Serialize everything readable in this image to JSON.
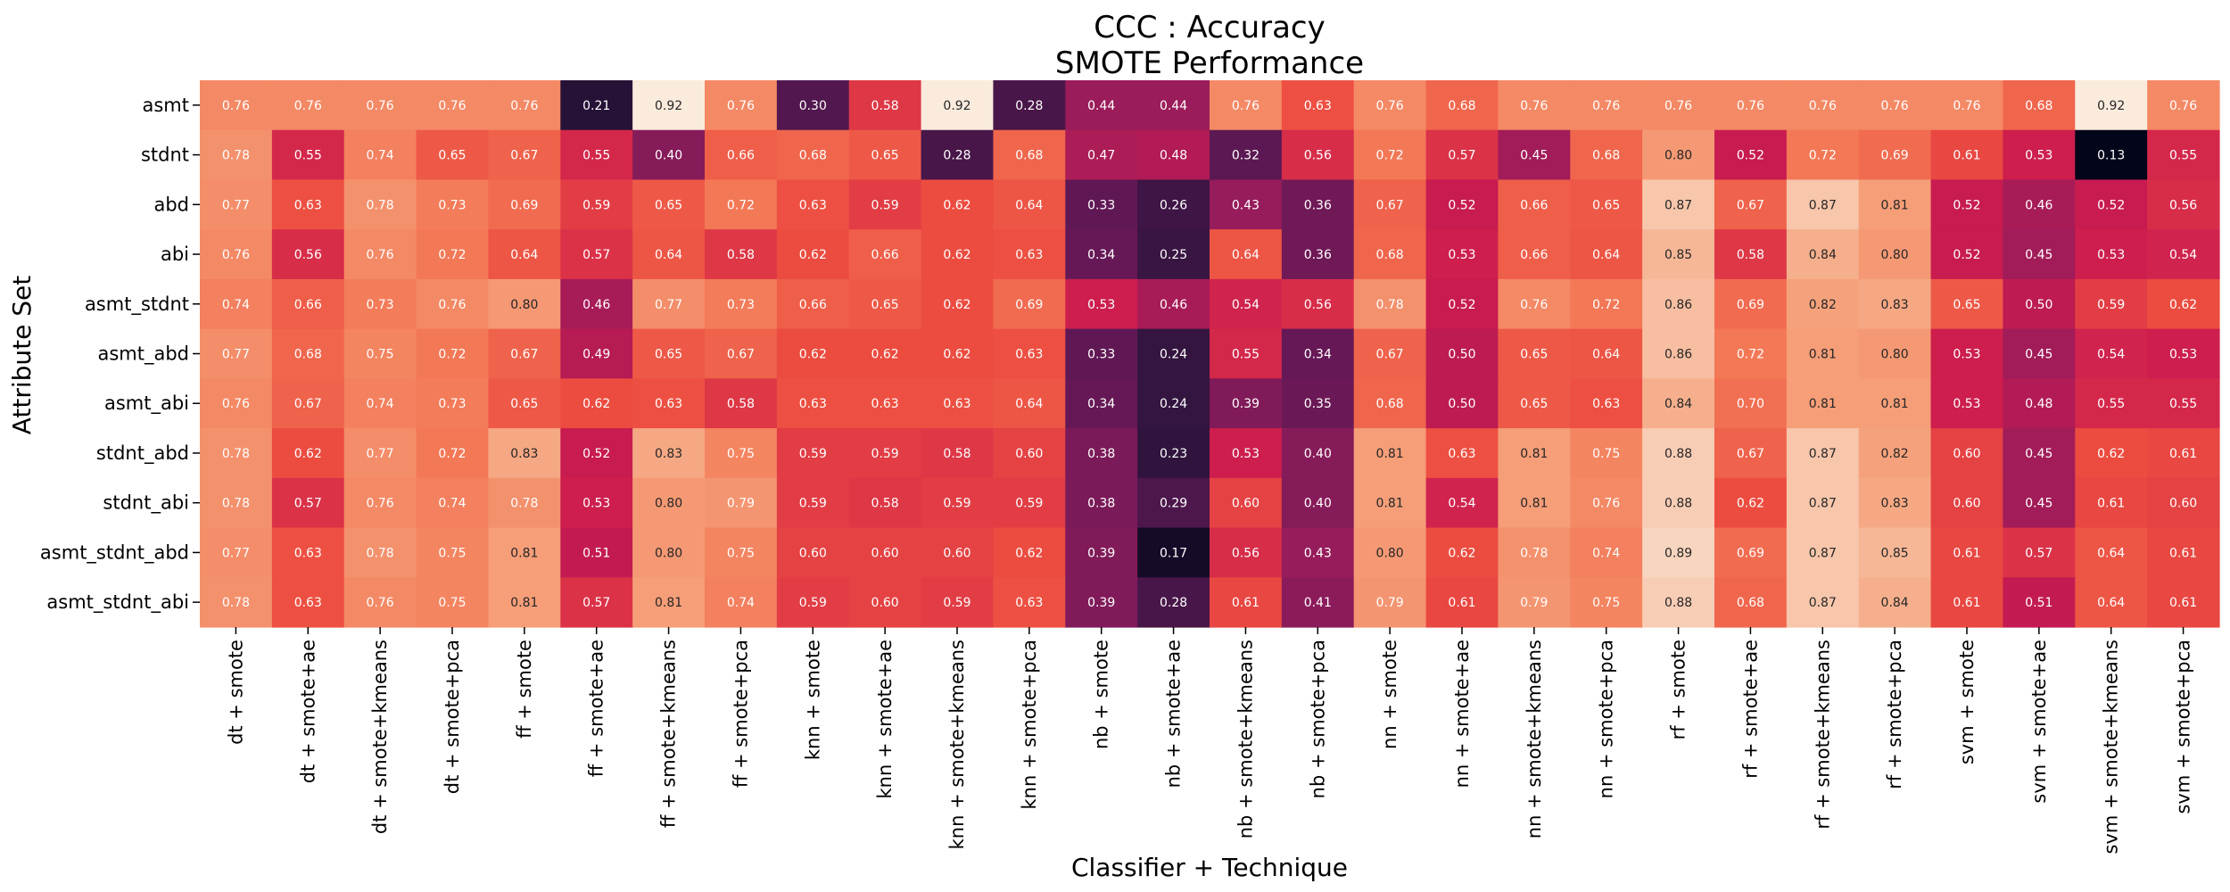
{
  "chart_data": {
    "type": "heatmap",
    "title_line1": "CCC : Accuracy",
    "title_line2": "SMOTE Performance",
    "xlabel": "Classifier + Technique",
    "ylabel": "Attribute Set",
    "rows": [
      "asmt",
      "stdnt",
      "abd",
      "abi",
      "asmt_stdnt",
      "asmt_abd",
      "asmt_abi",
      "stdnt_abd",
      "stdnt_abi",
      "asmt_stdnt_abd",
      "asmt_stdnt_abi"
    ],
    "columns": [
      "dt + smote",
      "dt + smote+ae",
      "dt + smote+kmeans",
      "dt + smote+pca",
      "ff + smote",
      "ff + smote+ae",
      "ff + smote+kmeans",
      "ff + smote+pca",
      "knn + smote",
      "knn + smote+ae",
      "knn + smote+kmeans",
      "knn + smote+pca",
      "nb + smote",
      "nb + smote+ae",
      "nb + smote+kmeans",
      "nb + smote+pca",
      "nn + smote",
      "nn + smote+ae",
      "nn + smote+kmeans",
      "nn + smote+pca",
      "rf + smote",
      "rf + smote+ae",
      "rf + smote+kmeans",
      "rf + smote+pca",
      "svm + smote",
      "svm + smote+ae",
      "svm + smote+kmeans",
      "svm + smote+pca"
    ],
    "values": [
      [
        0.76,
        0.76,
        0.76,
        0.76,
        0.76,
        0.21,
        0.92,
        0.76,
        0.3,
        0.58,
        0.92,
        0.28,
        0.44,
        0.44,
        0.76,
        0.63,
        0.76,
        0.68,
        0.76,
        0.76,
        0.76,
        0.76,
        0.76,
        0.76,
        0.76,
        0.68,
        0.92,
        0.76
      ],
      [
        0.78,
        0.55,
        0.74,
        0.65,
        0.67,
        0.55,
        0.4,
        0.66,
        0.68,
        0.65,
        0.28,
        0.68,
        0.47,
        0.48,
        0.32,
        0.56,
        0.72,
        0.57,
        0.45,
        0.68,
        0.8,
        0.52,
        0.72,
        0.69,
        0.61,
        0.53,
        0.13,
        0.55
      ],
      [
        0.77,
        0.63,
        0.78,
        0.73,
        0.69,
        0.59,
        0.65,
        0.72,
        0.63,
        0.59,
        0.62,
        0.64,
        0.33,
        0.26,
        0.43,
        0.36,
        0.67,
        0.52,
        0.66,
        0.65,
        0.87,
        0.67,
        0.87,
        0.81,
        0.52,
        0.46,
        0.52,
        0.56
      ],
      [
        0.76,
        0.56,
        0.76,
        0.72,
        0.64,
        0.57,
        0.64,
        0.58,
        0.62,
        0.66,
        0.62,
        0.63,
        0.34,
        0.25,
        0.64,
        0.36,
        0.68,
        0.53,
        0.66,
        0.64,
        0.85,
        0.58,
        0.84,
        0.8,
        0.52,
        0.45,
        0.53,
        0.54
      ],
      [
        0.74,
        0.66,
        0.73,
        0.76,
        0.8,
        0.46,
        0.77,
        0.73,
        0.66,
        0.65,
        0.62,
        0.69,
        0.53,
        0.46,
        0.54,
        0.56,
        0.78,
        0.52,
        0.76,
        0.72,
        0.86,
        0.69,
        0.82,
        0.83,
        0.65,
        0.5,
        0.59,
        0.62
      ],
      [
        0.77,
        0.68,
        0.75,
        0.72,
        0.67,
        0.49,
        0.65,
        0.67,
        0.62,
        0.62,
        0.62,
        0.63,
        0.33,
        0.24,
        0.55,
        0.34,
        0.67,
        0.5,
        0.65,
        0.64,
        0.86,
        0.72,
        0.81,
        0.8,
        0.53,
        0.45,
        0.54,
        0.53
      ],
      [
        0.76,
        0.67,
        0.74,
        0.73,
        0.65,
        0.62,
        0.63,
        0.58,
        0.63,
        0.63,
        0.63,
        0.64,
        0.34,
        0.24,
        0.39,
        0.35,
        0.68,
        0.5,
        0.65,
        0.63,
        0.84,
        0.7,
        0.81,
        0.81,
        0.53,
        0.48,
        0.55,
        0.55
      ],
      [
        0.78,
        0.62,
        0.77,
        0.72,
        0.83,
        0.52,
        0.83,
        0.75,
        0.59,
        0.59,
        0.58,
        0.6,
        0.38,
        0.23,
        0.53,
        0.4,
        0.81,
        0.63,
        0.81,
        0.75,
        0.88,
        0.67,
        0.87,
        0.82,
        0.6,
        0.45,
        0.62,
        0.61
      ],
      [
        0.78,
        0.57,
        0.76,
        0.74,
        0.78,
        0.53,
        0.8,
        0.79,
        0.59,
        0.58,
        0.59,
        0.59,
        0.38,
        0.29,
        0.6,
        0.4,
        0.81,
        0.54,
        0.81,
        0.76,
        0.88,
        0.62,
        0.87,
        0.83,
        0.6,
        0.45,
        0.61,
        0.6
      ],
      [
        0.77,
        0.63,
        0.78,
        0.75,
        0.81,
        0.51,
        0.8,
        0.75,
        0.6,
        0.6,
        0.6,
        0.62,
        0.39,
        0.17,
        0.56,
        0.43,
        0.8,
        0.62,
        0.78,
        0.74,
        0.89,
        0.69,
        0.87,
        0.85,
        0.61,
        0.57,
        0.64,
        0.61
      ],
      [
        0.78,
        0.63,
        0.76,
        0.75,
        0.81,
        0.57,
        0.81,
        0.74,
        0.59,
        0.6,
        0.59,
        0.63,
        0.39,
        0.28,
        0.61,
        0.41,
        0.79,
        0.61,
        0.79,
        0.75,
        0.88,
        0.68,
        0.87,
        0.84,
        0.61,
        0.51,
        0.64,
        0.61
      ]
    ],
    "value_range": [
      0.13,
      0.92
    ],
    "colormap": "rocket",
    "grid": false,
    "colorbar": false
  }
}
